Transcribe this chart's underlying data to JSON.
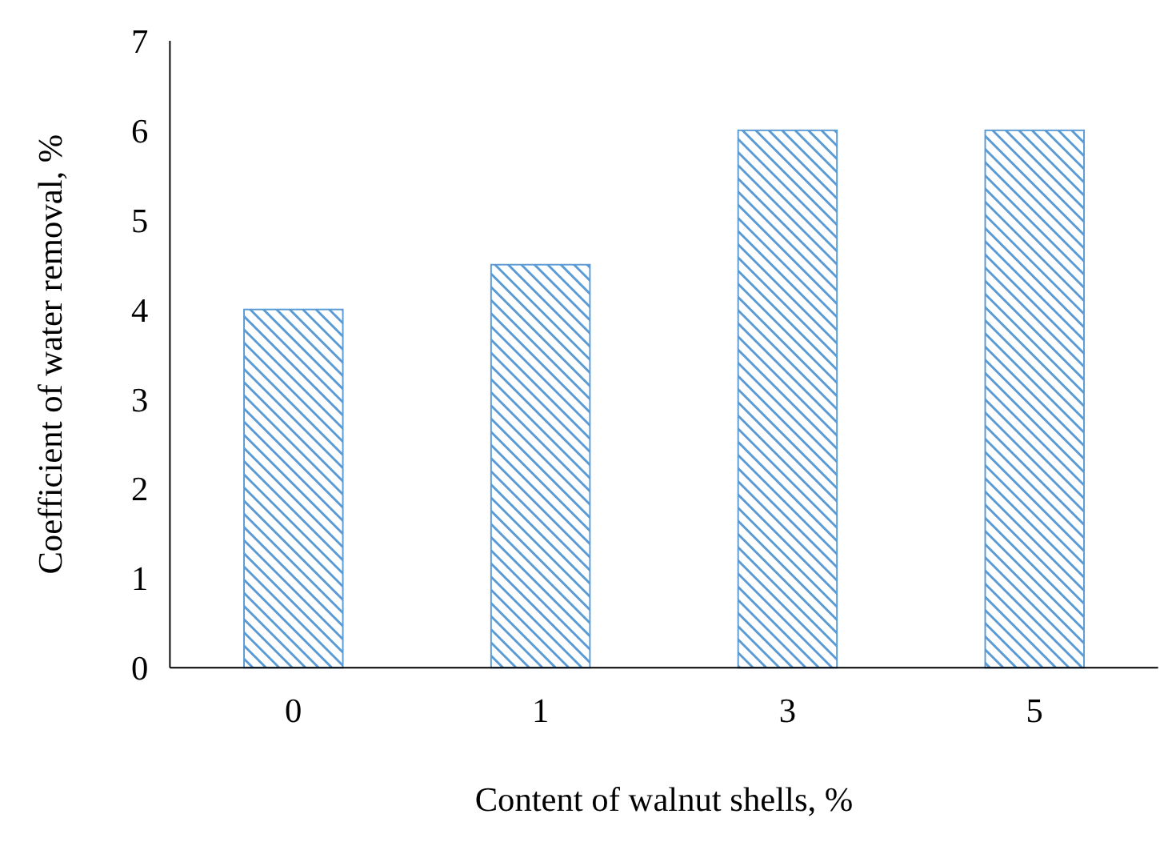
{
  "chart_data": {
    "type": "bar",
    "xlabel": "Content of walnut shells, %",
    "ylabel": "Coefficient of water removal, %",
    "categories": [
      "0",
      "1",
      "3",
      "5"
    ],
    "values": [
      4,
      4.5,
      6,
      6
    ],
    "color": "#5b9bd5",
    "ylim": [
      0,
      7
    ],
    "yticks": [
      0,
      1,
      2,
      3,
      4,
      5,
      6,
      7
    ],
    "grid": false
  }
}
